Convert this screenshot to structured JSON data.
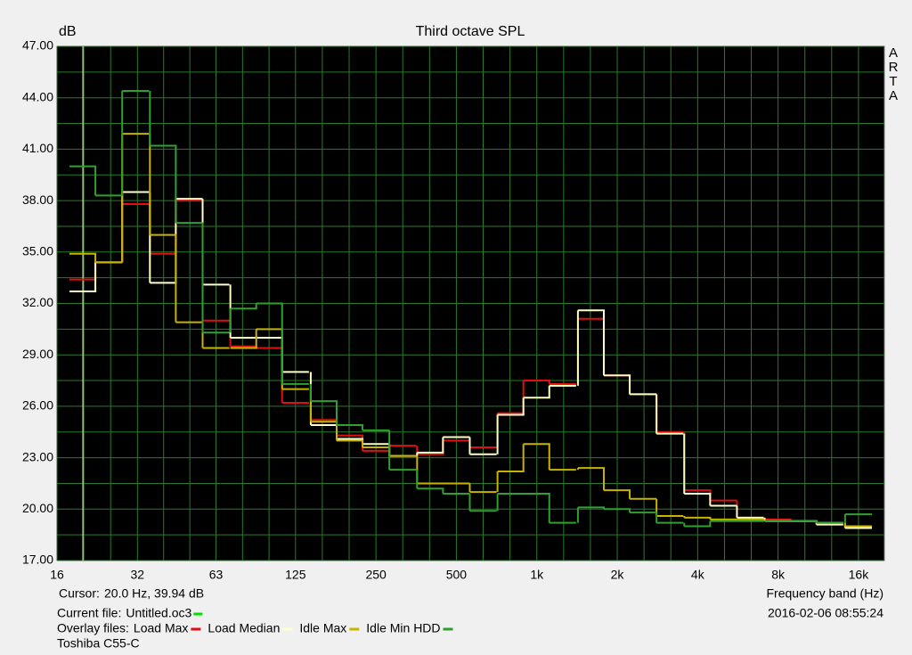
{
  "chart_data": {
    "type": "step",
    "title": "Third octave SPL",
    "y_label": "dB",
    "x_label": "Frequency band (Hz)",
    "watermark": "ARTA",
    "log_x": true,
    "grid": true,
    "xlim": [
      16,
      20000
    ],
    "ylim": [
      17,
      47
    ],
    "xticks": [
      16,
      32,
      63,
      125,
      250,
      500,
      {
        "value": 1000,
        "label": "1k"
      },
      {
        "value": 2000,
        "label": "2k"
      },
      {
        "value": 4000,
        "label": "4k"
      },
      {
        "value": 8000,
        "label": "8k"
      },
      {
        "value": 16000,
        "label": "16k"
      }
    ],
    "yticks": [
      {
        "value": 17,
        "label": "17.00"
      },
      {
        "value": 20,
        "label": "20.00"
      },
      {
        "value": 23,
        "label": "23.00"
      },
      {
        "value": 26,
        "label": "26.00"
      },
      {
        "value": 29,
        "label": "29.00"
      },
      {
        "value": 32,
        "label": "32.00"
      },
      {
        "value": 35,
        "label": "35.00"
      },
      {
        "value": 38,
        "label": "38.00"
      },
      {
        "value": 41,
        "label": "41.00"
      },
      {
        "value": 44,
        "label": "44.00"
      },
      {
        "value": 47,
        "label": "47.00"
      }
    ],
    "x": [
      20,
      25,
      31.5,
      40,
      50,
      63,
      80,
      100,
      125,
      160,
      200,
      250,
      315,
      400,
      500,
      630,
      800,
      1000,
      1250,
      1600,
      2000,
      2500,
      3150,
      4000,
      5000,
      6300,
      8000,
      10000,
      12500,
      16000
    ],
    "series": [
      {
        "name": "Load Max",
        "color": "#e01010",
        "values": [
          33.4,
          34.4,
          37.8,
          34.9,
          38.0,
          31.0,
          29.5,
          29.4,
          26.2,
          25.2,
          24.3,
          23.4,
          23.7,
          23.2,
          24.0,
          23.6,
          25.6,
          27.5,
          27.3,
          31.1,
          27.8,
          26.7,
          24.5,
          21.1,
          20.5,
          19.5,
          19.4,
          19.3,
          19.2,
          19.0
        ]
      },
      {
        "name": "Load Median",
        "color": "#ffffc8",
        "values": [
          32.7,
          34.4,
          38.5,
          33.2,
          38.1,
          33.1,
          30.0,
          30.0,
          28.0,
          24.9,
          24.1,
          23.8,
          23.1,
          23.3,
          24.2,
          23.2,
          25.5,
          26.5,
          27.2,
          31.6,
          27.8,
          26.7,
          24.4,
          20.9,
          20.2,
          19.5,
          19.3,
          19.3,
          19.1,
          18.9
        ]
      },
      {
        "name": "Idle Max",
        "color": "#c8b400",
        "values": [
          34.9,
          34.4,
          41.9,
          36.0,
          30.9,
          29.4,
          29.4,
          30.5,
          27.0,
          25.1,
          24.0,
          23.6,
          23.1,
          21.5,
          21.5,
          21.0,
          22.2,
          23.8,
          22.3,
          22.4,
          21.1,
          20.6,
          19.6,
          19.5,
          19.4,
          19.4,
          19.3,
          19.3,
          19.2,
          19.0
        ]
      },
      {
        "name": "Idle Min HDD",
        "color": "#30a030",
        "values": [
          40.0,
          38.3,
          44.4,
          41.2,
          36.7,
          30.3,
          31.7,
          32.0,
          27.3,
          26.3,
          24.9,
          24.6,
          22.3,
          21.2,
          20.9,
          19.9,
          20.9,
          20.9,
          19.2,
          20.1,
          20.0,
          19.8,
          19.2,
          19.0,
          19.3,
          19.3,
          19.3,
          19.3,
          19.2,
          19.7
        ]
      }
    ],
    "cursor": {
      "label": "Cursor:",
      "text": "20.0 Hz, 39.94 dB",
      "x": 20
    },
    "current_file": {
      "label": "Current file:",
      "name": "Untitled.oc3",
      "color": "#00e000"
    },
    "overlay_label": "Overlay files:",
    "note": "Toshiba C55-C",
    "timestamp": "2016-02-06  08:55:24"
  }
}
